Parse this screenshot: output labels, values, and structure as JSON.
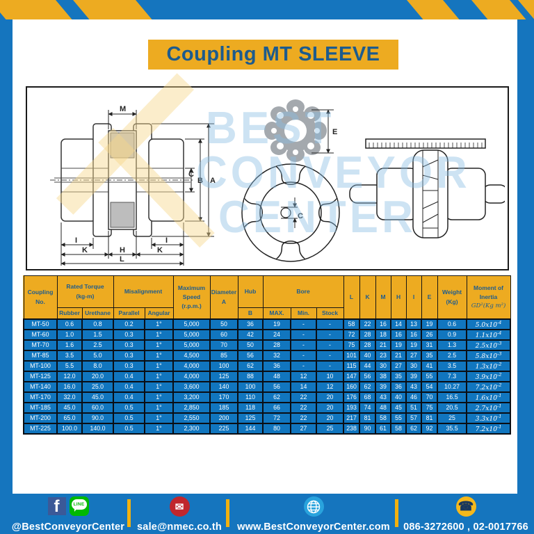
{
  "page": {
    "title": "Coupling MT SLEEVE"
  },
  "colors": {
    "frame_blue": "#1575BE",
    "gold": "#EDAB21",
    "navy_text": "#1E5C8E",
    "row_blue": "#1176BF",
    "facebook_blue": "#3B5998",
    "line_green": "#00B900",
    "mail_red": "#C0272D",
    "globe_blue": "#29A3DD",
    "phone_yellow": "#F5B81C"
  },
  "watermark": {
    "lines": [
      "BEST",
      "CONVEYOR",
      "CENTER"
    ]
  },
  "drawing": {
    "side_labels": {
      "m": "M",
      "c": "C",
      "b": "B",
      "a": "A",
      "i_left": "I",
      "i_right": "I",
      "k_left": "K",
      "h": "H",
      "k_right": "K",
      "l": "L"
    },
    "sleeve_label": {
      "e": "E"
    },
    "front_label": {
      "c": "C"
    }
  },
  "table": {
    "header": {
      "coupling": [
        "Coupling",
        "No."
      ],
      "rated": [
        "Rated Torque",
        "(kg-m)"
      ],
      "rubber": "Rubber",
      "urethane": "Urethane",
      "misalignment": "Misalignment",
      "parallel": "Parallel",
      "angular": "Angular",
      "speed": [
        "Maximum",
        "Speed",
        "(r.p.m.)"
      ],
      "diameter": [
        "Diameter",
        "A"
      ],
      "hub": "Hub",
      "b": "B",
      "bore": "Bore",
      "max": "MAX.",
      "min": "Min.",
      "stock": "Stock",
      "dims": [
        "L",
        "K",
        "M",
        "H",
        "I",
        "E"
      ],
      "weight": [
        "Weight",
        "(Kg)"
      ],
      "moment": [
        "Moment of",
        "Inertia"
      ],
      "moment_math": "GD²(Kg m²)"
    },
    "rows": [
      {
        "cells": [
          "MT-50",
          "0.6",
          "0.8",
          "0.2",
          "1°",
          "5,000",
          "50",
          "36",
          "19",
          "-",
          "-",
          "58",
          "22",
          "16",
          "14",
          "13",
          "19",
          "0.6"
        ],
        "inertia": {
          "base": "5.0x10",
          "exp": "-4"
        }
      },
      {
        "cells": [
          "MT-60",
          "1.0",
          "1.5",
          "0.3",
          "1°",
          "5,000",
          "60",
          "42",
          "24",
          "-",
          "-",
          "72",
          "28",
          "18",
          "16",
          "16",
          "26",
          "0.9"
        ],
        "inertia": {
          "base": "1.1x10",
          "exp": "-4"
        }
      },
      {
        "cells": [
          "MT-70",
          "1.6",
          "2.5",
          "0.3",
          "1°",
          "5,000",
          "70",
          "50",
          "28",
          "-",
          "-",
          "75",
          "28",
          "21",
          "19",
          "19",
          "31",
          "1.3"
        ],
        "inertia": {
          "base": "2.5x10",
          "exp": "-3"
        }
      },
      {
        "cells": [
          "MT-85",
          "3.5",
          "5.0",
          "0.3",
          "1°",
          "4,500",
          "85",
          "56",
          "32",
          "-",
          "-",
          "101",
          "40",
          "23",
          "21",
          "27",
          "35",
          "2.5"
        ],
        "inertia": {
          "base": "5.8x10",
          "exp": "-3"
        }
      },
      {
        "cells": [
          "MT-100",
          "5.5",
          "8.0",
          "0.3",
          "1°",
          "4,000",
          "100",
          "62",
          "36",
          "-",
          "-",
          "115",
          "44",
          "30",
          "27",
          "30",
          "41",
          "3.5"
        ],
        "inertia": {
          "base": "1.3x10",
          "exp": "-2"
        }
      },
      {
        "cells": [
          "MT-125",
          "12.0",
          "20.0",
          "0.4",
          "1°",
          "4,000",
          "125",
          "88",
          "48",
          "12",
          "10",
          "147",
          "56",
          "38",
          "35",
          "39",
          "55",
          "7.3"
        ],
        "inertia": {
          "base": "3.9x10",
          "exp": "-2"
        }
      },
      {
        "cells": [
          "MT-140",
          "16.0",
          "25.0",
          "0.4",
          "1°",
          "3,600",
          "140",
          "100",
          "56",
          "14",
          "12",
          "160",
          "62",
          "39",
          "36",
          "43",
          "54",
          "10.27"
        ],
        "inertia": {
          "base": "7.2x10",
          "exp": "-2"
        }
      },
      {
        "cells": [
          "MT-170",
          "32.0",
          "45.0",
          "0.4",
          "1°",
          "3,200",
          "170",
          "110",
          "62",
          "22",
          "20",
          "176",
          "68",
          "43",
          "40",
          "46",
          "70",
          "16.5"
        ],
        "inertia": {
          "base": "1.6x10",
          "exp": "-1"
        }
      },
      {
        "cells": [
          "MT-185",
          "45.0",
          "60.0",
          "0.5",
          "1°",
          "2,850",
          "185",
          "118",
          "66",
          "22",
          "20",
          "193",
          "74",
          "48",
          "45",
          "51",
          "75",
          "20.5"
        ],
        "inertia": {
          "base": "2.7x10",
          "exp": "-1"
        }
      },
      {
        "cells": [
          "MT-200",
          "65.0",
          "90.0",
          "0.5",
          "1°",
          "2,550",
          "200",
          "125",
          "72",
          "22",
          "20",
          "217",
          "81",
          "58",
          "55",
          "57",
          "81",
          "25"
        ],
        "inertia": {
          "base": "3.3x10",
          "exp": "-1"
        }
      },
      {
        "cells": [
          "MT-225",
          "100.0",
          "140.0",
          "0.5",
          "1°",
          "2,300",
          "225",
          "144",
          "80",
          "27",
          "25",
          "238",
          "90",
          "61",
          "58",
          "62",
          "92",
          "35.5"
        ],
        "inertia": {
          "base": "7.2x10",
          "exp": "-1"
        }
      }
    ]
  },
  "footer": {
    "facebook_letter": "f",
    "line_label": "LINE",
    "social_handle": "@BestConveyorCenter",
    "email": "sale@nmec.co.th",
    "website": "www.BestConveyorCenter.com",
    "phones": "086-3272600 , 02-0017766",
    "mail_glyph": "✉",
    "phone_glyph": "☎"
  }
}
